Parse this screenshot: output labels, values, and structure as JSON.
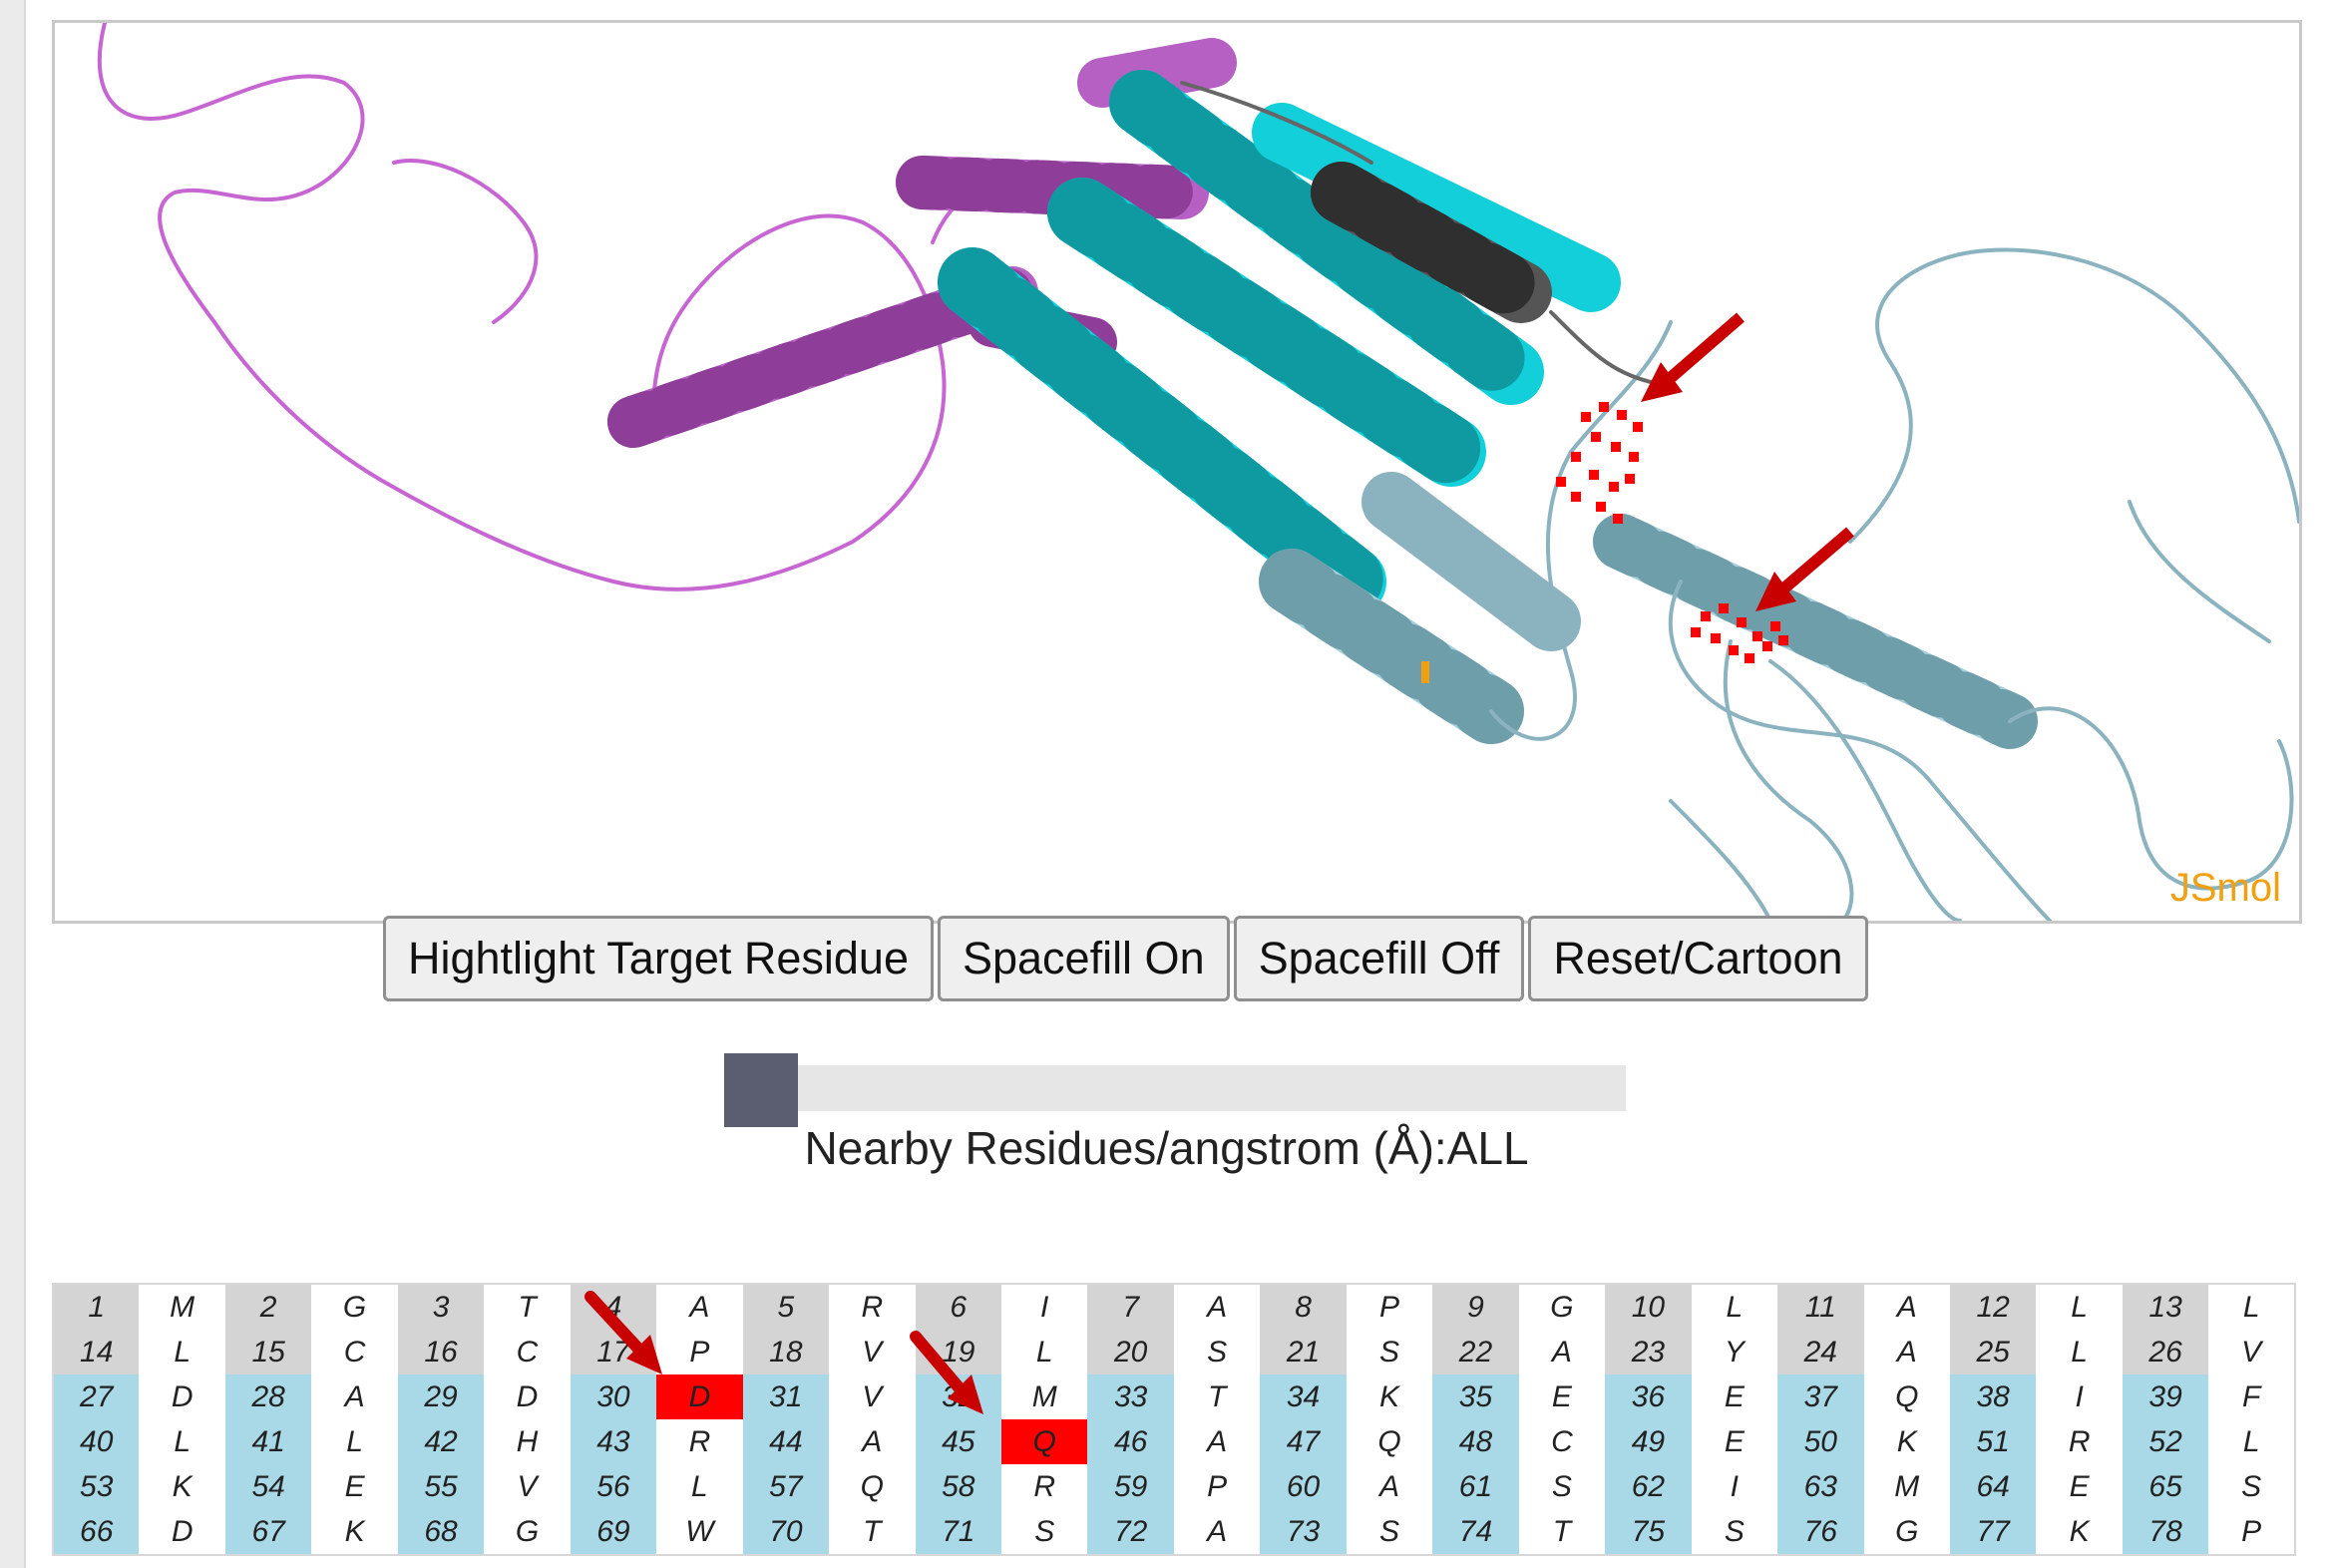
{
  "viewer": {
    "watermark": "JSmol",
    "colors": {
      "chain_a": "#c766d3",
      "chain_b": "#12cfd9",
      "chain_c": "#a6cfdb",
      "dark_segment": "#555555",
      "highlight": "#ff0000",
      "arrow": "#c80000"
    }
  },
  "buttons": {
    "highlight_label": "Hightlight Target Residue",
    "spacefill_on_label": "Spacefill On",
    "spacefill_off_label": "Spacefill Off",
    "reset_label": "Reset/Cartoon"
  },
  "slider": {
    "label": "Nearby Residues/angstrom (Å):ALL",
    "position": 0
  },
  "sequence": {
    "rows": [
      {
        "shade": "gray",
        "pairs": [
          [
            "1",
            "M"
          ],
          [
            "2",
            "G"
          ],
          [
            "3",
            "T"
          ],
          [
            "4",
            "A"
          ],
          [
            "5",
            "R"
          ],
          [
            "6",
            "I"
          ],
          [
            "7",
            "A"
          ],
          [
            "8",
            "P"
          ],
          [
            "9",
            "G"
          ],
          [
            "10",
            "L"
          ],
          [
            "11",
            "A"
          ],
          [
            "12",
            "L"
          ],
          [
            "13",
            "L"
          ]
        ]
      },
      {
        "shade": "gray",
        "pairs": [
          [
            "14",
            "L"
          ],
          [
            "15",
            "C"
          ],
          [
            "16",
            "C"
          ],
          [
            "17",
            "P"
          ],
          [
            "18",
            "V"
          ],
          [
            "19",
            "L"
          ],
          [
            "20",
            "S"
          ],
          [
            "21",
            "S"
          ],
          [
            "22",
            "A"
          ],
          [
            "23",
            "Y"
          ],
          [
            "24",
            "A"
          ],
          [
            "25",
            "L"
          ],
          [
            "26",
            "V"
          ]
        ]
      },
      {
        "shade": "blue",
        "pairs": [
          [
            "27",
            "D"
          ],
          [
            "28",
            "A"
          ],
          [
            "29",
            "D"
          ],
          [
            "30",
            "D"
          ],
          [
            "31",
            "V"
          ],
          [
            "32",
            "M"
          ],
          [
            "33",
            "T"
          ],
          [
            "34",
            "K"
          ],
          [
            "35",
            "E"
          ],
          [
            "36",
            "E"
          ],
          [
            "37",
            "Q"
          ],
          [
            "38",
            "I"
          ],
          [
            "39",
            "F"
          ]
        ]
      },
      {
        "shade": "blue",
        "pairs": [
          [
            "40",
            "L"
          ],
          [
            "41",
            "L"
          ],
          [
            "42",
            "H"
          ],
          [
            "43",
            "R"
          ],
          [
            "44",
            "A"
          ],
          [
            "45",
            "Q"
          ],
          [
            "46",
            "A"
          ],
          [
            "47",
            "Q"
          ],
          [
            "48",
            "C"
          ],
          [
            "49",
            "E"
          ],
          [
            "50",
            "K"
          ],
          [
            "51",
            "R"
          ],
          [
            "52",
            "L"
          ]
        ]
      },
      {
        "shade": "blue",
        "pairs": [
          [
            "53",
            "K"
          ],
          [
            "54",
            "E"
          ],
          [
            "55",
            "V"
          ],
          [
            "56",
            "L"
          ],
          [
            "57",
            "Q"
          ],
          [
            "58",
            "R"
          ],
          [
            "59",
            "P"
          ],
          [
            "60",
            "A"
          ],
          [
            "61",
            "S"
          ],
          [
            "62",
            "I"
          ],
          [
            "63",
            "M"
          ],
          [
            "64",
            "E"
          ],
          [
            "65",
            "S"
          ]
        ]
      },
      {
        "shade": "blue",
        "pairs": [
          [
            "66",
            "D"
          ],
          [
            "67",
            "K"
          ],
          [
            "68",
            "G"
          ],
          [
            "69",
            "W"
          ],
          [
            "70",
            "T"
          ],
          [
            "71",
            "S"
          ],
          [
            "72",
            "A"
          ],
          [
            "73",
            "S"
          ],
          [
            "74",
            "T"
          ],
          [
            "75",
            "S"
          ],
          [
            "76",
            "G"
          ],
          [
            "77",
            "K"
          ],
          [
            "78",
            "P"
          ]
        ]
      }
    ],
    "highlighted": [
      "30",
      "45"
    ]
  }
}
